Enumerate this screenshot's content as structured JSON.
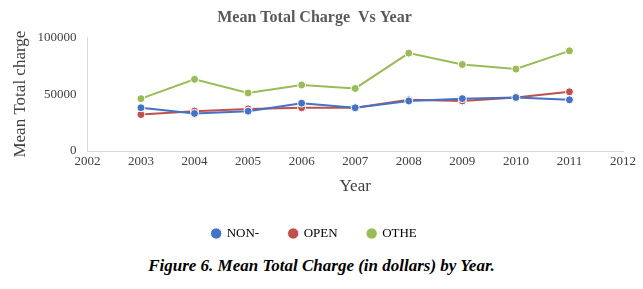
{
  "chart_data": {
    "type": "line",
    "title": "Mean Total Charge  Vs Year",
    "x_label": "Year",
    "y_label": "Mean Total charge",
    "caption": "Figure 6. Mean Total Charge (in dollars) by Year.",
    "x": [
      2003,
      2004,
      2005,
      2006,
      2007,
      2008,
      2009,
      2010,
      2011
    ],
    "series": [
      {
        "name": "NON-",
        "color": "#4472c4",
        "marker": "circle",
        "values": [
          38000,
          33000,
          35000,
          42000,
          38000,
          44000,
          46000,
          47000,
          45000
        ]
      },
      {
        "name": "OPEN",
        "color": "#c0504d",
        "marker": "circle",
        "values": [
          32000,
          35000,
          37000,
          38000,
          38000,
          45000,
          44000,
          47000,
          52000
        ]
      },
      {
        "name": "OTHE",
        "color": "#9bbb59",
        "marker": "circle",
        "values": [
          46000,
          63000,
          51000,
          58000,
          55000,
          86000,
          76000,
          72000,
          88000
        ]
      }
    ],
    "xlim": [
      2002,
      2012
    ],
    "xticks": [
      2002,
      2003,
      2004,
      2005,
      2006,
      2007,
      2008,
      2009,
      2010,
      2011,
      2012
    ],
    "ylim": [
      0,
      100000
    ],
    "yticks": [
      0,
      50000,
      100000
    ],
    "grid": false,
    "legend": "bottom"
  }
}
